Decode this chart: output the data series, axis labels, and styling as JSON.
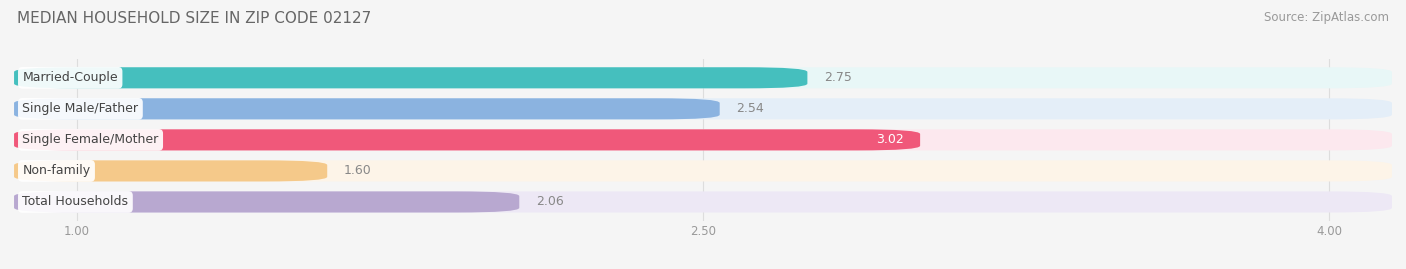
{
  "title": "MEDIAN HOUSEHOLD SIZE IN ZIP CODE 02127",
  "source": "Source: ZipAtlas.com",
  "categories": [
    "Married-Couple",
    "Single Male/Father",
    "Single Female/Mother",
    "Non-family",
    "Total Households"
  ],
  "values": [
    2.75,
    2.54,
    3.02,
    1.6,
    2.06
  ],
  "bar_colors": [
    "#45bfbe",
    "#8bb3e0",
    "#f0587a",
    "#f5c98a",
    "#b8a8d0"
  ],
  "bar_bg_colors": [
    "#e8f7f7",
    "#e4eef8",
    "#fce8ee",
    "#fdf4e8",
    "#ede8f5"
  ],
  "value_in_bar": [
    false,
    false,
    true,
    false,
    false
  ],
  "value_color_in": "#ffffff",
  "value_color_out": "#888888",
  "xlim_min": 0.85,
  "xlim_max": 4.15,
  "xticks": [
    1.0,
    2.5,
    4.0
  ],
  "xtick_labels": [
    "1.00",
    "2.50",
    "4.00"
  ],
  "title_fontsize": 11,
  "label_fontsize": 9,
  "value_fontsize": 9,
  "source_fontsize": 8.5,
  "bar_height": 0.68,
  "background_color": "#f5f5f5",
  "grid_color": "#dddddd"
}
